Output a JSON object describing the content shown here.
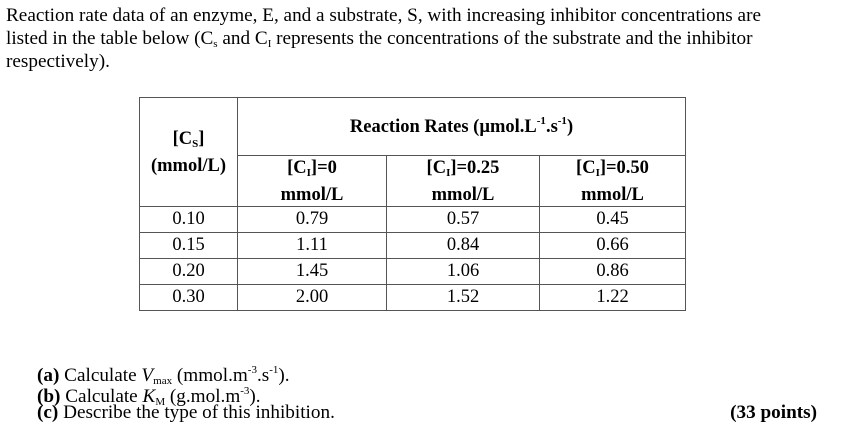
{
  "intro": {
    "line1": "Reaction rate data of an enzyme, E, and a substrate, S, with increasing inhibitor concentrations are",
    "line2_a": "listed in the table below (C",
    "line2_sub1": "s",
    "line2_b": " and C",
    "line2_sub2": "I",
    "line2_c": " represents the concentrations of the substrate and the inhibitor",
    "line3": "respectively)."
  },
  "table": {
    "cs_label_a": "[C",
    "cs_label_sub": "S",
    "cs_label_b": "]",
    "cs_unit": "(mmol/L)",
    "rates_header_a": "Reaction Rates (µmol.L",
    "rates_header_sup1": "-1",
    "rates_header_b": ".s",
    "rates_header_sup2": "-1",
    "rates_header_c": ")",
    "ci_columns": [
      {
        "pre": "[C",
        "sub": "I",
        "post": "]=0",
        "unit": "mmol/L"
      },
      {
        "pre": "[C",
        "sub": "I",
        "post": "]=0.25",
        "unit": "mmol/L"
      },
      {
        "pre": "[C",
        "sub": "I",
        "post": "]=0.50",
        "unit": "mmol/L"
      }
    ],
    "rows": [
      [
        "0.10",
        "0.79",
        "0.57",
        "0.45"
      ],
      [
        "0.15",
        "1.11",
        "0.84",
        "0.66"
      ],
      [
        "0.20",
        "1.45",
        "1.06",
        "0.86"
      ],
      [
        "0.30",
        "2.00",
        "1.52",
        "1.22"
      ]
    ]
  },
  "questions": {
    "a_label": "(a)",
    "a_text1": "Calculate ",
    "a_var": "V",
    "a_var_sub": "max",
    "a_text2": " (mmol.m",
    "a_sup1": "-3",
    "a_text3": ".s",
    "a_sup2": "-1",
    "a_text4": ").",
    "b_label": "(b)",
    "b_text1": "Calculate ",
    "b_var": "K",
    "b_var_sub": "M",
    "b_text2": " (g.mol.m",
    "b_sup1": "-3",
    "b_text3": ").",
    "c_label": "(c)",
    "c_text": "Describe the type of this inhibition.",
    "points": "(33 points)"
  }
}
